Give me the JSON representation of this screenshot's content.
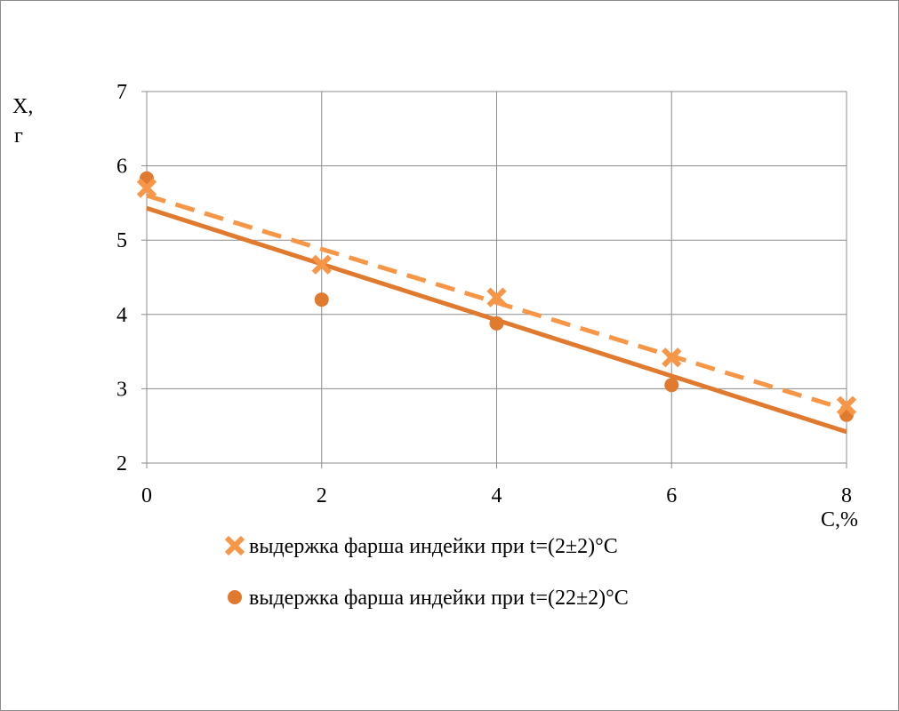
{
  "chart_data": {
    "type": "scatter",
    "title": "",
    "xlabel": "C,%",
    "ylabel_line1": "X,",
    "ylabel_line2": "г",
    "xlim": [
      0,
      8
    ],
    "ylim": [
      2,
      7
    ],
    "xticks": [
      0,
      2,
      4,
      6,
      8
    ],
    "yticks": [
      2,
      3,
      4,
      5,
      6,
      7
    ],
    "grid": true,
    "legend_position": "bottom",
    "series": [
      {
        "name": "выдержка фарша индейки при t=(2±2)°C",
        "marker": "x",
        "color": "#F79646",
        "x": [
          0,
          2,
          4,
          6,
          8
        ],
        "y": [
          5.7,
          4.67,
          4.23,
          3.42,
          2.77
        ],
        "trendline": {
          "style": "dashed",
          "from": [
            0,
            5.6
          ],
          "to": [
            8,
            2.72
          ]
        }
      },
      {
        "name": "выдержка фарша индейки при t=(22±2)°C",
        "marker": "circle",
        "color": "#E07A2E",
        "x": [
          0,
          2,
          4,
          6,
          8
        ],
        "y": [
          5.83,
          4.2,
          3.88,
          3.05,
          2.65
        ],
        "trendline": {
          "style": "solid",
          "from": [
            0,
            5.43
          ],
          "to": [
            8,
            2.42
          ]
        }
      }
    ]
  }
}
